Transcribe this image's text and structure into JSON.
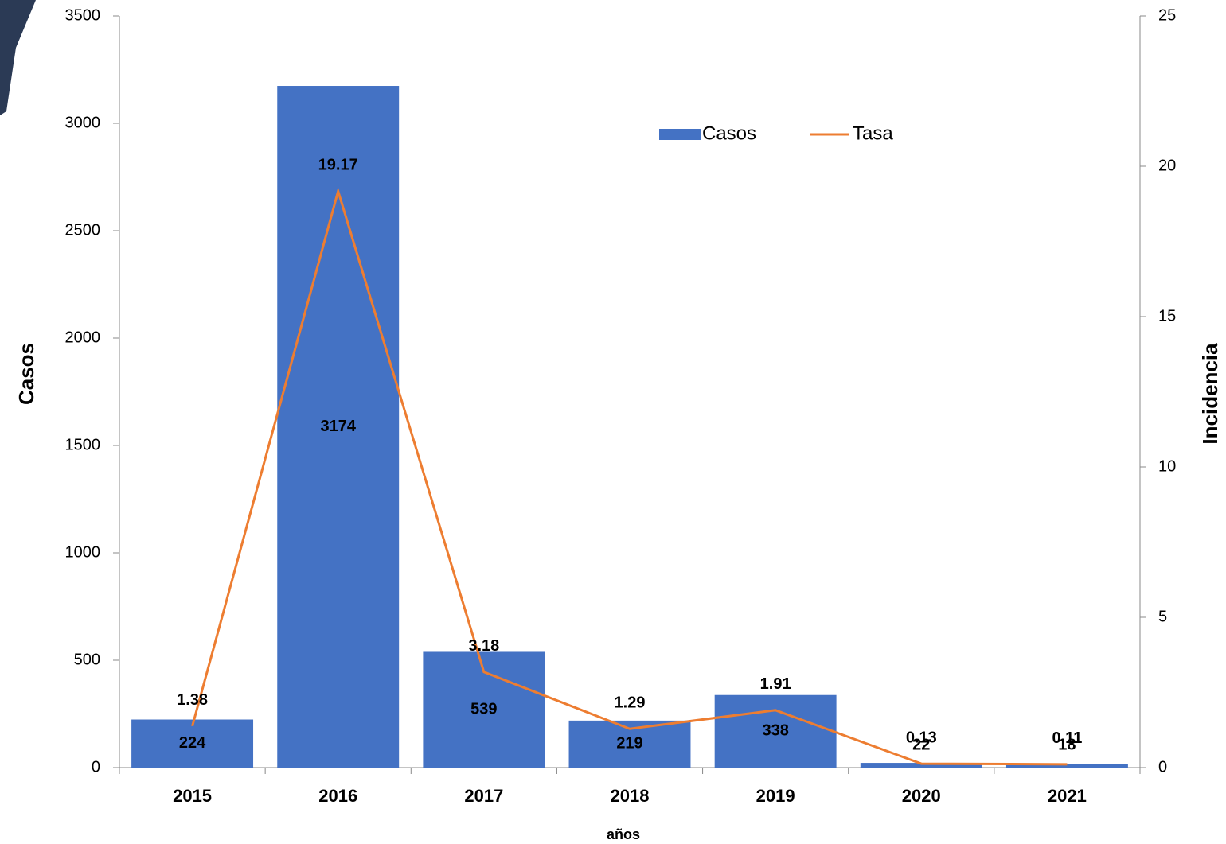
{
  "chart_data": {
    "type": "bar",
    "categories": [
      "2015",
      "2016",
      "2017",
      "2018",
      "2019",
      "2020",
      "2021"
    ],
    "series": [
      {
        "name": "Casos",
        "color": "#4472c4",
        "values": [
          224,
          3174,
          539,
          219,
          338,
          22,
          18
        ]
      },
      {
        "name": "Tasa",
        "color": "#ed7d31",
        "axis": "y2",
        "type": "line",
        "values": [
          1.38,
          19.17,
          3.18,
          1.29,
          1.91,
          0.13,
          0.11
        ]
      }
    ],
    "ylabel": "Casos",
    "y2label": "Incidencia",
    "xlabel": "años",
    "ylim": [
      0,
      3500
    ],
    "yticks": [
      0,
      500,
      1000,
      1500,
      2000,
      2500,
      3000,
      3500
    ],
    "y2lim": [
      0,
      25
    ],
    "y2ticks": [
      0,
      5,
      10,
      15,
      20,
      25
    ]
  }
}
